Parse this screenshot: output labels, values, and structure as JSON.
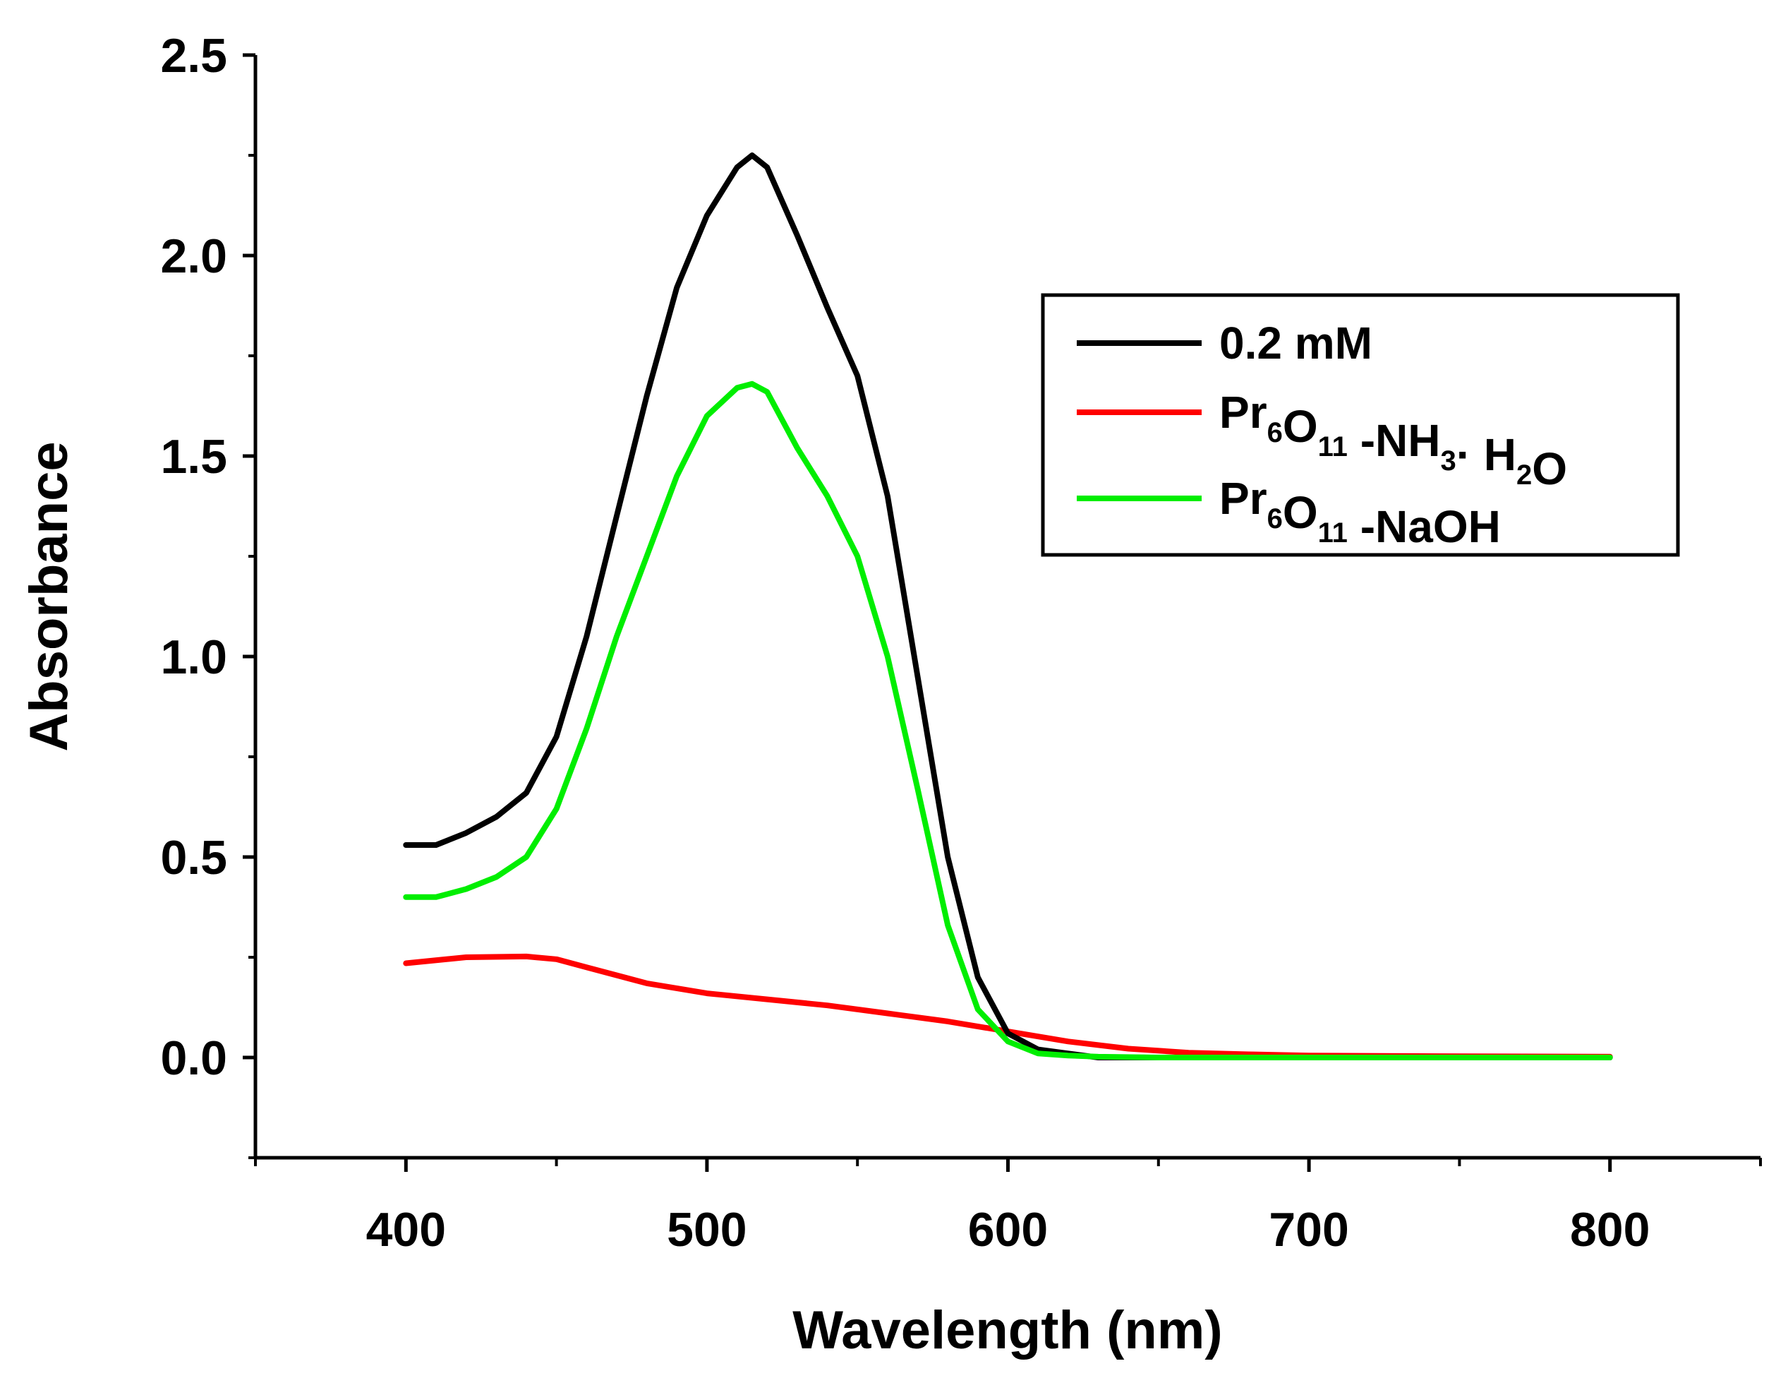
{
  "chart_data": {
    "type": "line",
    "title": "",
    "xlabel": "Wavelength (nm)",
    "ylabel": "Absorbance",
    "xlim": [
      350,
      850
    ],
    "ylim": [
      -0.25,
      2.5
    ],
    "xticks": [
      400,
      500,
      600,
      700,
      800
    ],
    "xtick_labels": [
      "400",
      "500",
      "600",
      "700",
      "800"
    ],
    "yticks": [
      0.0,
      0.5,
      1.0,
      1.5,
      2.0,
      2.5
    ],
    "ytick_labels": [
      "0.0",
      "0.5",
      "1.0",
      "1.5",
      "2.0",
      "2.5"
    ],
    "legend_position": "top-right",
    "series": [
      {
        "name": "0.2 mM",
        "color": "#000000",
        "x": [
          400,
          410,
          420,
          430,
          440,
          450,
          460,
          470,
          480,
          490,
          500,
          510,
          515,
          520,
          530,
          540,
          550,
          560,
          570,
          580,
          590,
          600,
          610,
          620,
          630,
          650,
          700,
          750,
          800
        ],
        "y": [
          0.53,
          0.53,
          0.56,
          0.6,
          0.66,
          0.8,
          1.05,
          1.35,
          1.65,
          1.92,
          2.1,
          2.22,
          2.25,
          2.22,
          2.05,
          1.87,
          1.7,
          1.4,
          0.95,
          0.5,
          0.2,
          0.06,
          0.02,
          0.01,
          0.0,
          0.0,
          0.0,
          0.0,
          0.0
        ]
      },
      {
        "name": "Pr6O11 -NH3· H2O",
        "legend_parts": [
          {
            "t": "Pr",
            "sub": false
          },
          {
            "t": "6",
            "sub": true
          },
          {
            "t": "O",
            "sub": false
          },
          {
            "t": "11",
            "sub": true
          },
          {
            "t": " -NH",
            "sub": false
          },
          {
            "t": "3",
            "sub": true
          },
          {
            "t": "·  H",
            "sub": false
          },
          {
            "t": "2",
            "sub": true
          },
          {
            "t": "O",
            "sub": false
          }
        ],
        "color": "#ff0000",
        "x": [
          400,
          420,
          440,
          450,
          460,
          480,
          500,
          520,
          540,
          560,
          580,
          600,
          620,
          640,
          660,
          680,
          700,
          750,
          800
        ],
        "y": [
          0.235,
          0.25,
          0.252,
          0.245,
          0.225,
          0.185,
          0.16,
          0.145,
          0.13,
          0.11,
          0.09,
          0.065,
          0.04,
          0.022,
          0.012,
          0.008,
          0.005,
          0.003,
          0.002
        ]
      },
      {
        "name": "Pr6O11 -NaOH",
        "legend_parts": [
          {
            "t": "Pr",
            "sub": false
          },
          {
            "t": "6",
            "sub": true
          },
          {
            "t": "O",
            "sub": false
          },
          {
            "t": "11",
            "sub": true
          },
          {
            "t": " -NaOH",
            "sub": false
          }
        ],
        "color": "#00ee00",
        "x": [
          400,
          410,
          420,
          430,
          440,
          450,
          460,
          470,
          480,
          490,
          500,
          510,
          515,
          520,
          530,
          540,
          550,
          560,
          570,
          580,
          590,
          600,
          610,
          620,
          630,
          650,
          700,
          750,
          800
        ],
        "y": [
          0.4,
          0.4,
          0.42,
          0.45,
          0.5,
          0.62,
          0.82,
          1.05,
          1.25,
          1.45,
          1.6,
          1.67,
          1.68,
          1.66,
          1.52,
          1.4,
          1.25,
          1.0,
          0.67,
          0.33,
          0.12,
          0.04,
          0.01,
          0.005,
          0.002,
          0.0,
          0.0,
          0.0,
          0.0
        ]
      }
    ]
  }
}
